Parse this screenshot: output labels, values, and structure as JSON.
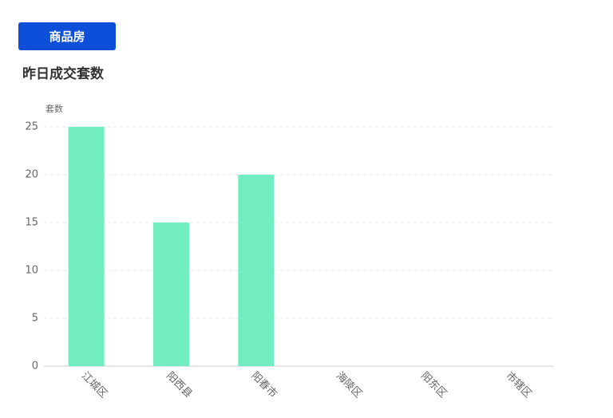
{
  "button": "商品房",
  "chart_data": {
    "type": "bar",
    "title": "昨日成交套数",
    "y_label": "套数",
    "categories": [
      "江城区",
      "阳西县",
      "阳春市",
      "海陵区",
      "阳东区",
      "市辖区"
    ],
    "values": [
      25,
      15,
      20,
      0,
      0,
      0
    ],
    "color": "#72edc0",
    "ylim": [
      0,
      25
    ],
    "yticks": [
      0,
      5,
      10,
      15,
      20,
      25
    ],
    "grid": true
  }
}
